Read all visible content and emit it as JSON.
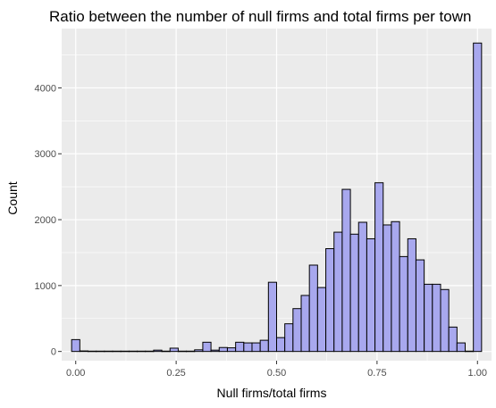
{
  "chart_data": {
    "type": "bar",
    "title": "Ratio between the number of null firms and total firms per town",
    "xlabel": "Null firms/total firms",
    "ylabel": "Count",
    "xlim": [
      -0.035,
      1.035
    ],
    "ylim": [
      -140,
      4900
    ],
    "x_ticks": [
      {
        "value": 0,
        "label": "0.00"
      },
      {
        "value": 0.25,
        "label": "0.25"
      },
      {
        "value": 0.5,
        "label": "0.50"
      },
      {
        "value": 0.75,
        "label": "0.75"
      },
      {
        "value": 1.0,
        "label": "1.00"
      }
    ],
    "y_ticks": [
      {
        "value": 0,
        "label": "0"
      },
      {
        "value": 1000,
        "label": "1000"
      },
      {
        "value": 2000,
        "label": "2000"
      },
      {
        "value": 3000,
        "label": "3000"
      },
      {
        "value": 4000,
        "label": "4000"
      }
    ],
    "bin_width": 0.0204,
    "bin_centers": [
      0,
      0.0204,
      0.0408,
      0.0612,
      0.0816,
      0.102,
      0.1224,
      0.1429,
      0.1633,
      0.1837,
      0.2041,
      0.2245,
      0.2449,
      0.2653,
      0.2857,
      0.3061,
      0.3265,
      0.3469,
      0.3673,
      0.3878,
      0.4082,
      0.4286,
      0.449,
      0.4694,
      0.4898,
      0.5102,
      0.5306,
      0.551,
      0.5714,
      0.5918,
      0.6122,
      0.6327,
      0.6531,
      0.6735,
      0.6939,
      0.7143,
      0.7347,
      0.7551,
      0.7755,
      0.7959,
      0.8163,
      0.8367,
      0.8571,
      0.8776,
      0.898,
      0.9184,
      0.9388,
      0.9592,
      0.9796,
      1.0
    ],
    "values": [
      180,
      8,
      5,
      5,
      5,
      5,
      5,
      5,
      5,
      5,
      20,
      5,
      50,
      5,
      5,
      25,
      140,
      20,
      60,
      55,
      140,
      130,
      130,
      170,
      1050,
      210,
      420,
      650,
      850,
      1310,
      970,
      1560,
      1810,
      2460,
      1780,
      1960,
      1710,
      2560,
      1920,
      1970,
      1440,
      1710,
      1390,
      1020,
      1020,
      940,
      370,
      130,
      5,
      4680
    ],
    "fill_color": "#a8a8ee",
    "stroke_color": "#000000",
    "panel_background": "#ebebeb",
    "grid": true
  }
}
